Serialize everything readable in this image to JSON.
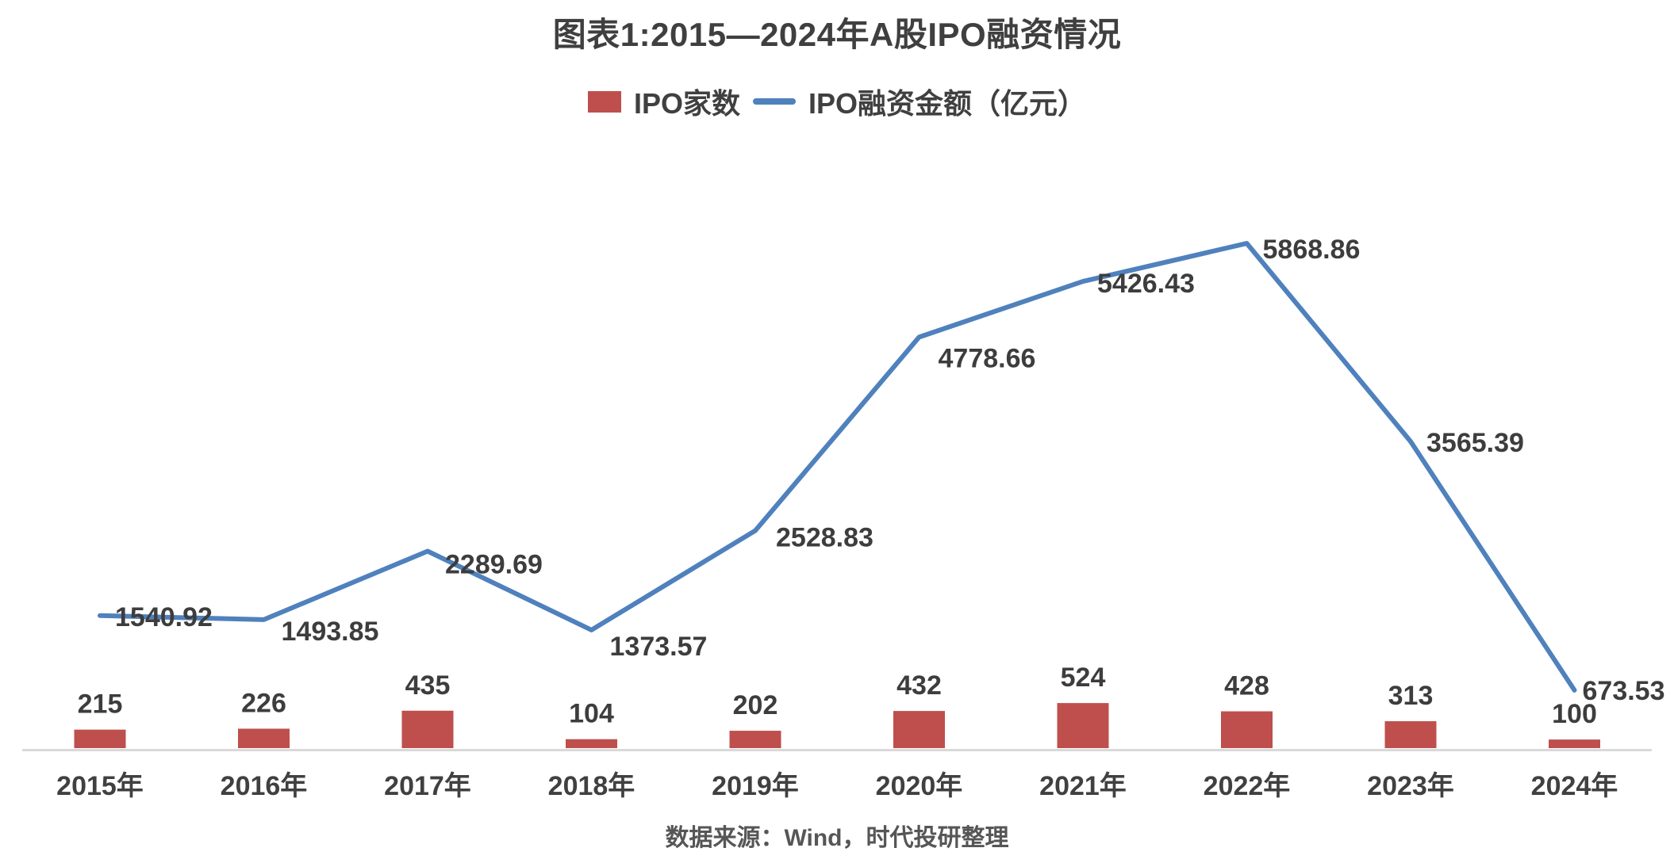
{
  "title": "图表1:2015—2024年A股IPO融资情况",
  "legend": [
    {
      "label": "IPO家数",
      "type": "bar",
      "color": "#BE4F4D"
    },
    {
      "label": "IPO融资金额（亿元）",
      "type": "line",
      "color": "#4F81BD"
    }
  ],
  "source_note": "数据来源：Wind，时代投研整理",
  "colors": {
    "bar": "#BE4F4D",
    "line": "#4F81BD",
    "data_label": "#3d3d3d",
    "axis_line": "#d9d9d9",
    "x_label": "#404040",
    "title": "#3f3f3f"
  },
  "chart_data": {
    "type": "combo",
    "categories": [
      "2015年",
      "2016年",
      "2017年",
      "2018年",
      "2019年",
      "2020年",
      "2021年",
      "2022年",
      "2023年",
      "2024年"
    ],
    "series": [
      {
        "name": "IPO家数",
        "type": "bar",
        "values": [
          215,
          226,
          435,
          104,
          202,
          432,
          524,
          428,
          313,
          100
        ]
      },
      {
        "name": "IPO融资金额（亿元）",
        "type": "line",
        "values": [
          1540.92,
          1493.85,
          2289.69,
          1373.57,
          2528.83,
          4778.66,
          5426.43,
          5868.86,
          3565.39,
          673.53
        ]
      }
    ],
    "title": "图表1:2015—2024年A股IPO融资情况",
    "xlabel": "",
    "ylabel": "",
    "ylim": [
      0,
      7000
    ],
    "grid": false,
    "legend_position": "top",
    "data_labels": true,
    "source": "数据来源：Wind，时代投研整理"
  }
}
